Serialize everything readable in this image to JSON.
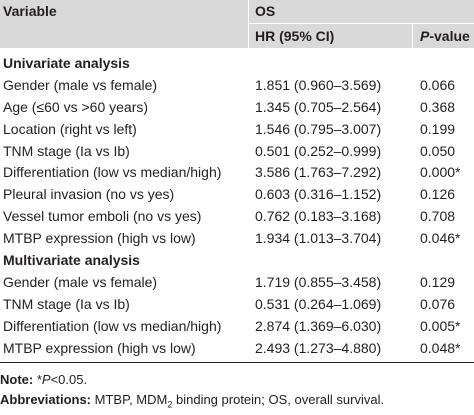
{
  "header": {
    "variable": "Variable",
    "group": "OS",
    "hr": "HR (95% CI)",
    "p_prefix": "P",
    "p_suffix": "-value"
  },
  "rows": [
    {
      "type": "section",
      "label": "Univariate analysis",
      "hr": "",
      "p": ""
    },
    {
      "type": "data",
      "label": "Gender (male vs female)",
      "hr": "1.851 (0.960–3.569)",
      "p": "0.066"
    },
    {
      "type": "data",
      "label": "Age (≤60 vs >60 years)",
      "hr": "1.345 (0.705–2.564)",
      "p": "0.368"
    },
    {
      "type": "data",
      "label": "Location (right vs left)",
      "hr": "1.546 (0.795–3.007)",
      "p": "0.199"
    },
    {
      "type": "data",
      "label": "TNM stage (Ia vs Ib)",
      "hr": "0.501 (0.252–0.999)",
      "p": "0.050"
    },
    {
      "type": "data",
      "label": "Differentiation (low vs median/high)",
      "hr": "3.586 (1.763–7.292)",
      "p": "0.000*"
    },
    {
      "type": "data",
      "label": "Pleural invasion (no vs yes)",
      "hr": "0.603 (0.316–1.152)",
      "p": "0.126"
    },
    {
      "type": "data",
      "label": "Vessel tumor emboli (no vs yes)",
      "hr": "0.762 (0.183–3.168)",
      "p": "0.708"
    },
    {
      "type": "data",
      "label": "MTBP expression (high vs low)",
      "hr": "1.934 (1.013–3.704)",
      "p": "0.046*"
    },
    {
      "type": "section",
      "label": "Multivariate analysis",
      "hr": "",
      "p": ""
    },
    {
      "type": "data",
      "label": "Gender (male vs female)",
      "hr": "1.719 (0.855–3.458)",
      "p": "0.129"
    },
    {
      "type": "data",
      "label": "TNM stage (Ia vs Ib)",
      "hr": "0.531 (0.264–1.069)",
      "p": "0.076"
    },
    {
      "type": "data",
      "label": "Differentiation (low vs median/high)",
      "hr": "2.874 (1.369–6.030)",
      "p": "0.005*"
    },
    {
      "type": "data",
      "label": "MTBP expression (high vs low)",
      "hr": "2.493 (1.273–4.880)",
      "p": "0.048*"
    }
  ],
  "notes": {
    "note_label": "Note:",
    "note_star": "*",
    "note_p": "P",
    "note_rest": "<0.05.",
    "abbrev_label": "Abbreviations:",
    "abbrev_text_1": "MTBP, MDM",
    "abbrev_sub": "2",
    "abbrev_text_2": " binding protein; OS, overall survival."
  }
}
